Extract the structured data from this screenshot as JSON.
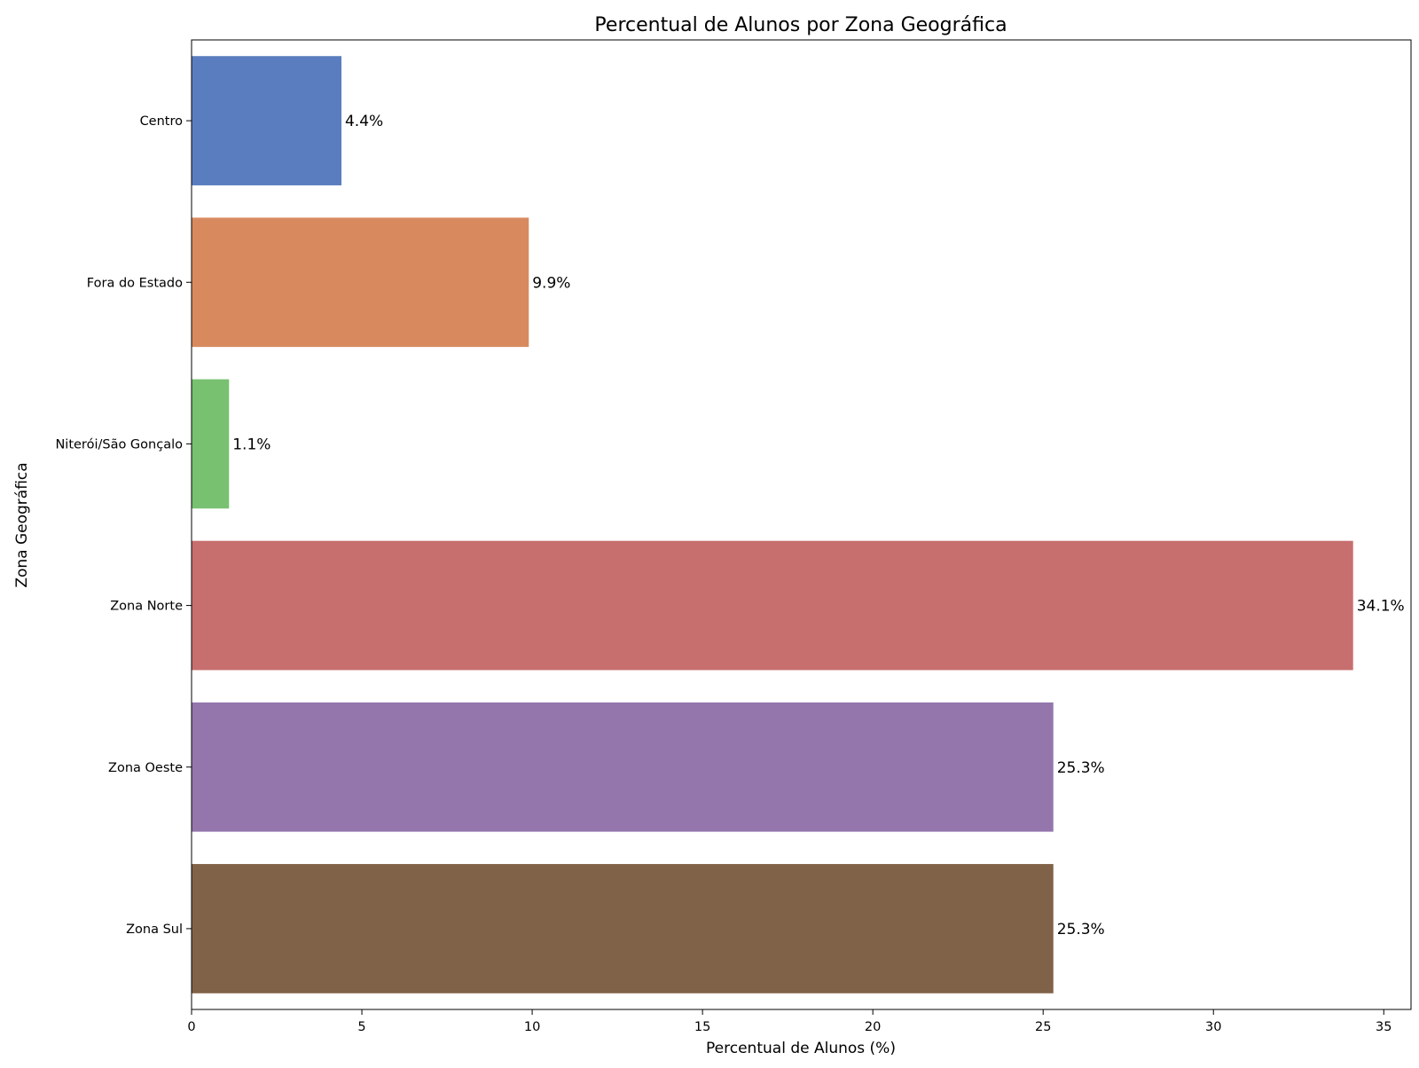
{
  "chart_data": {
    "type": "bar",
    "orientation": "horizontal",
    "title": "Percentual de Alunos por Zona Geográfica",
    "xlabel": "Percentual de Alunos (%)",
    "ylabel": "Zona Geográfica",
    "categories": [
      "Centro",
      "Fora do Estado",
      "Niterói/São Gonçalo",
      "Zona Norte",
      "Zona Oeste",
      "Zona Sul"
    ],
    "values": [
      4.4,
      9.9,
      1.1,
      34.1,
      25.3,
      25.3
    ],
    "value_labels": [
      "4.4%",
      "9.9%",
      "1.1%",
      "34.1%",
      "25.3%",
      "25.3%"
    ],
    "colors": [
      "#5a7dbf",
      "#d88a5e",
      "#78c170",
      "#c76f6e",
      "#9476ad",
      "#806248"
    ],
    "xlim": [
      0,
      35.8
    ],
    "xticks": [
      0,
      5,
      10,
      15,
      20,
      25,
      30,
      35
    ],
    "xtick_labels": [
      "0",
      "5",
      "10",
      "15",
      "20",
      "25",
      "30",
      "35"
    ],
    "grid": false,
    "legend": "none"
  }
}
